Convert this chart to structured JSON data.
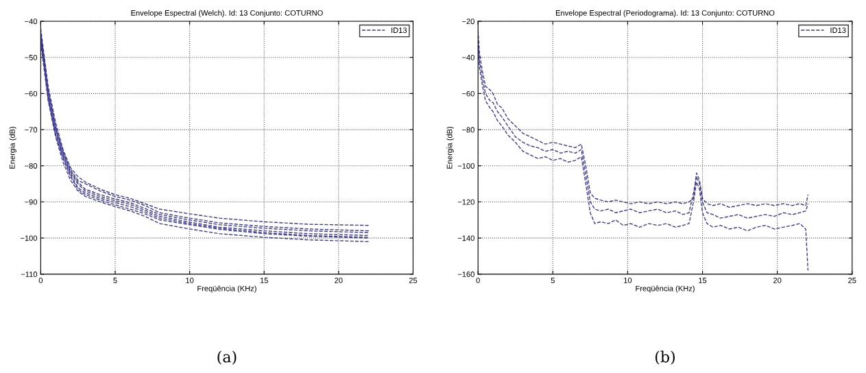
{
  "chart_data": [
    {
      "type": "line",
      "title": "Envelope Espectral (Welch). Id: 13 Conjunto: COTURNO",
      "xlabel": "Freqüência (KHz)",
      "ylabel": "Energia (dB)",
      "annotations": [
        "(a)"
      ],
      "x": [
        0,
        0.25,
        0.5,
        1,
        1.5,
        2,
        2.5,
        3,
        4,
        5,
        6,
        7,
        8,
        10,
        12,
        15,
        18,
        22.05
      ],
      "series": [
        {
          "name": "ID13",
          "color": "#3d3a8f",
          "values": [
            -42,
            -50,
            -58,
            -68,
            -75.5,
            -80.5,
            -83,
            -84.5,
            -86.5,
            -88,
            -89,
            -90.5,
            -92,
            -93.3,
            -94.5,
            -95.5,
            -96.2,
            -96.5
          ]
        },
        {
          "color": "#3d3a8f",
          "values": [
            -43,
            -51,
            -59,
            -69,
            -76,
            -81,
            -84,
            -85,
            -87,
            -88.5,
            -89.5,
            -91,
            -93,
            -94.5,
            -95.8,
            -96.8,
            -97.5,
            -98
          ]
        },
        {
          "color": "#3d3a8f",
          "values": [
            -43.5,
            -51.5,
            -59.5,
            -69.5,
            -76.5,
            -81.5,
            -84.5,
            -86.5,
            -88,
            -89.2,
            -90.2,
            -91.8,
            -93.5,
            -95,
            -96.3,
            -97.3,
            -98,
            -98.5
          ]
        },
        {
          "color": "#3d3a8f",
          "values": [
            -44,
            -52,
            -60,
            -70,
            -77,
            -82,
            -85,
            -87,
            -88.5,
            -89.7,
            -90.7,
            -92.3,
            -94,
            -95.6,
            -97,
            -98,
            -98.8,
            -99.3
          ]
        },
        {
          "color": "#3d3a8f",
          "values": [
            -44.5,
            -52.5,
            -61,
            -71,
            -77.5,
            -82.5,
            -86,
            -87.5,
            -89,
            -90.2,
            -91.3,
            -92.8,
            -94.5,
            -96,
            -97.3,
            -98.5,
            -99.3,
            -99.8
          ]
        },
        {
          "color": "#3d3a8f",
          "values": [
            -45,
            -53,
            -61.5,
            -71.5,
            -78,
            -83,
            -86.5,
            -88,
            -89.5,
            -90.8,
            -92,
            -93.3,
            -95,
            -96.3,
            -97.6,
            -98.8,
            -99.5,
            -100
          ]
        },
        {
          "color": "#3d3a8f",
          "values": [
            -46,
            -54,
            -62,
            -72,
            -79,
            -84,
            -87,
            -88.5,
            -90,
            -91.3,
            -92.5,
            -94,
            -96,
            -97.5,
            -98.8,
            -99.8,
            -100.5,
            -101
          ]
        }
      ],
      "xlim": [
        0,
        25
      ],
      "xticks": [
        0,
        5,
        10,
        15,
        20,
        25
      ],
      "ylim": [
        -110,
        -40
      ],
      "yticks": [
        -110,
        -100,
        -90,
        -80,
        -70,
        -60,
        -50,
        -40
      ],
      "grid": true,
      "legend": "top right",
      "line_style": "dashed",
      "marker": "none"
    },
    {
      "type": "line",
      "title": "Envelope Espectral (Periodograma). Id: 13 Conjunto: COTURNO",
      "xlabel": "Freqüência (KHz)",
      "ylabel": "Energia (dB)",
      "annotations": [
        "(b)"
      ],
      "x": [
        0,
        0.1,
        0.3,
        0.5,
        0.8,
        1,
        1.3,
        1.6,
        2,
        2.5,
        3,
        3.5,
        4,
        4.5,
        5,
        5.5,
        6,
        6.5,
        6.9,
        7.2,
        7.5,
        7.8,
        8.2,
        8.7,
        9.2,
        9.7,
        10.2,
        10.8,
        11.4,
        12,
        12.6,
        13.2,
        13.7,
        14.1,
        14.4,
        14.6,
        14.8,
        15,
        15.3,
        15.7,
        16.2,
        16.8,
        17.4,
        18,
        18.6,
        19.2,
        19.8,
        20.4,
        21,
        21.5,
        21.9,
        22.05
      ],
      "series": [
        {
          "name": "ID13",
          "color": "#3d3a8f",
          "values": [
            -25,
            -38,
            -48,
            -56,
            -58,
            -60,
            -66,
            -68,
            -74,
            -78,
            -82,
            -84,
            -86,
            -88,
            -87,
            -88,
            -89,
            -90,
            -88,
            -100,
            -115,
            -118,
            -119,
            -120,
            -119,
            -120,
            -121,
            -120,
            -121,
            -120,
            -121,
            -120,
            -121,
            -120,
            -118,
            -104,
            -108,
            -118,
            -121,
            -122,
            -121,
            -123,
            -122,
            -121,
            -122,
            -121,
            -122,
            -121,
            -122,
            -121,
            -122,
            -116
          ]
        },
        {
          "color": "#3d3a8f",
          "values": [
            -30,
            -42,
            -52,
            -60,
            -64,
            -65,
            -70,
            -73,
            -78,
            -84,
            -87,
            -89,
            -90,
            -92,
            -91,
            -93,
            -92,
            -93,
            -91,
            -105,
            -120,
            -124,
            -125,
            -124,
            -126,
            -125,
            -124,
            -126,
            -125,
            -124,
            -126,
            -125,
            -127,
            -126,
            -115,
            -106,
            -110,
            -120,
            -126,
            -127,
            -129,
            -128,
            -127,
            -129,
            -128,
            -127,
            -128,
            -126,
            -127,
            -126,
            -125,
            -121
          ]
        },
        {
          "color": "#3d3a8f",
          "values": [
            -34,
            -46,
            -56,
            -64,
            -68,
            -70,
            -75,
            -78,
            -83,
            -87,
            -92,
            -94,
            -96,
            -95,
            -97,
            -96,
            -98,
            -97,
            -95,
            -110,
            -126,
            -132,
            -131,
            -132,
            -130,
            -133,
            -132,
            -134,
            -132,
            -133,
            -132,
            -134,
            -133,
            -132,
            -120,
            -109,
            -113,
            -126,
            -132,
            -134,
            -133,
            -135,
            -134,
            -136,
            -134,
            -133,
            -135,
            -134,
            -133,
            -132,
            -135,
            -158
          ]
        }
      ],
      "xlim": [
        0,
        25
      ],
      "xticks": [
        0,
        5,
        10,
        15,
        20,
        25
      ],
      "ylim": [
        -160,
        -20
      ],
      "yticks": [
        -160,
        -140,
        -120,
        -100,
        -80,
        -60,
        -40,
        -20
      ],
      "grid": true,
      "legend": "top right",
      "line_style": "dashed",
      "marker": "none"
    }
  ]
}
